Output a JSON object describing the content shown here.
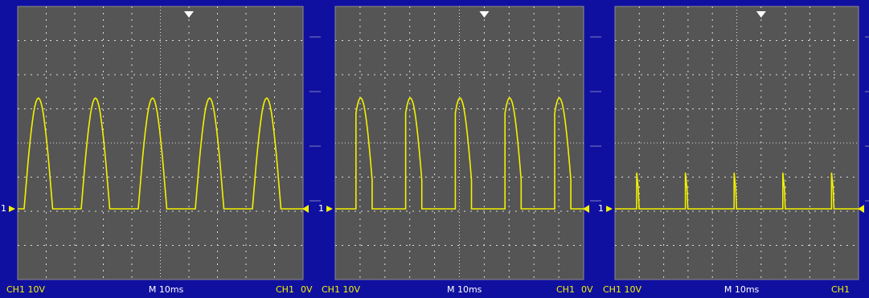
{
  "panels": [
    {
      "channel": "CH1 10V",
      "timebase": "M 10ms",
      "trigger_channel": "CH1",
      "trigger_level": "0V",
      "ground_marker": "1"
    },
    {
      "channel": "CH1 10V",
      "timebase": "M 10ms",
      "trigger_channel": "CH1",
      "trigger_level": "0V",
      "ground_marker": "1"
    },
    {
      "channel": "CH1 10V",
      "timebase": "M 10ms",
      "trigger_channel": "CH1",
      "ground_marker": "1"
    }
  ]
}
